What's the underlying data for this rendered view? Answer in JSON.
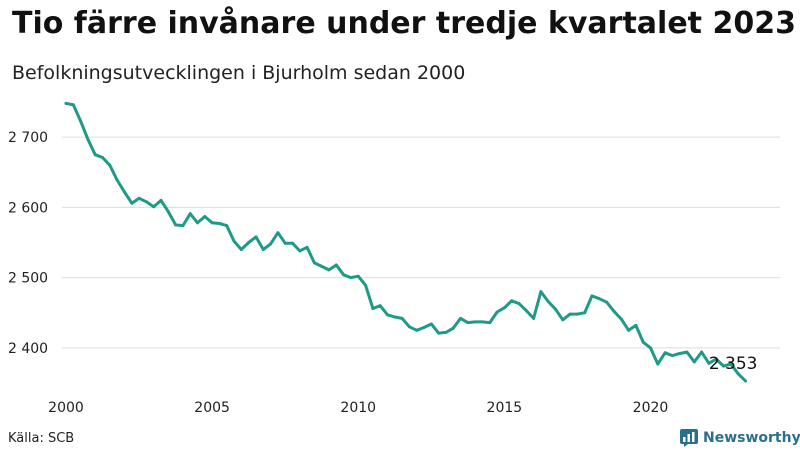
{
  "header": {
    "title": "Tio färre invånare under tredje kvartalet 2023",
    "subtitle": "Befolkningsutvecklingen i Bjurholm sedan 2000"
  },
  "footer": {
    "source": "Källa: SCB",
    "brand": "Newsworthy"
  },
  "colors": {
    "series": "#1e9a87",
    "brand": "#2b6f8e",
    "grid": "#dddddd"
  },
  "chart_data": {
    "type": "line",
    "title": "Tio färre invånare under tredje kvartalet 2023",
    "subtitle": "Befolkningsutvecklingen i Bjurholm sedan 2000",
    "xlabel": "",
    "ylabel": "",
    "grid": "horizontal",
    "y_ticks": [
      2400,
      2500,
      2600,
      2700
    ],
    "y_tick_labels": [
      "2 400",
      "2 500",
      "2 600",
      "2 700"
    ],
    "x_ticks": [
      2000,
      2005,
      2010,
      2015,
      2020
    ],
    "x_tick_labels": [
      "2000",
      "2005",
      "2010",
      "2015",
      "2020"
    ],
    "ylim": [
      2340,
      2760
    ],
    "xlim": [
      2000,
      2024.5
    ],
    "end_label": "2 353",
    "series": [
      {
        "start": 2000.0,
        "step": 0.25,
        "values": [
          2748,
          2746,
          2723,
          2697,
          2675,
          2671,
          2660,
          2639,
          2622,
          2606,
          2613,
          2608,
          2601,
          2610,
          2594,
          2575,
          2574,
          2591,
          2578,
          2587,
          2578,
          2577,
          2574,
          2552,
          2540,
          2550,
          2558,
          2540,
          2548,
          2564,
          2549,
          2549,
          2538,
          2543,
          2521,
          2516,
          2511,
          2518,
          2504,
          2500,
          2502,
          2489,
          2456,
          2460,
          2447,
          2444,
          2442,
          2430,
          2425,
          2429,
          2434,
          2421,
          2422,
          2428,
          2442,
          2436,
          2437,
          2437,
          2436,
          2451,
          2457,
          2467,
          2463,
          2453,
          2442,
          2480,
          2466,
          2455,
          2440,
          2448,
          2448,
          2450,
          2474,
          2470,
          2465,
          2452,
          2441,
          2425,
          2432,
          2408,
          2400,
          2377,
          2393,
          2389,
          2392,
          2394,
          2380,
          2394,
          2378,
          2384,
          2374,
          2377,
          2363,
          2353
        ]
      }
    ]
  }
}
